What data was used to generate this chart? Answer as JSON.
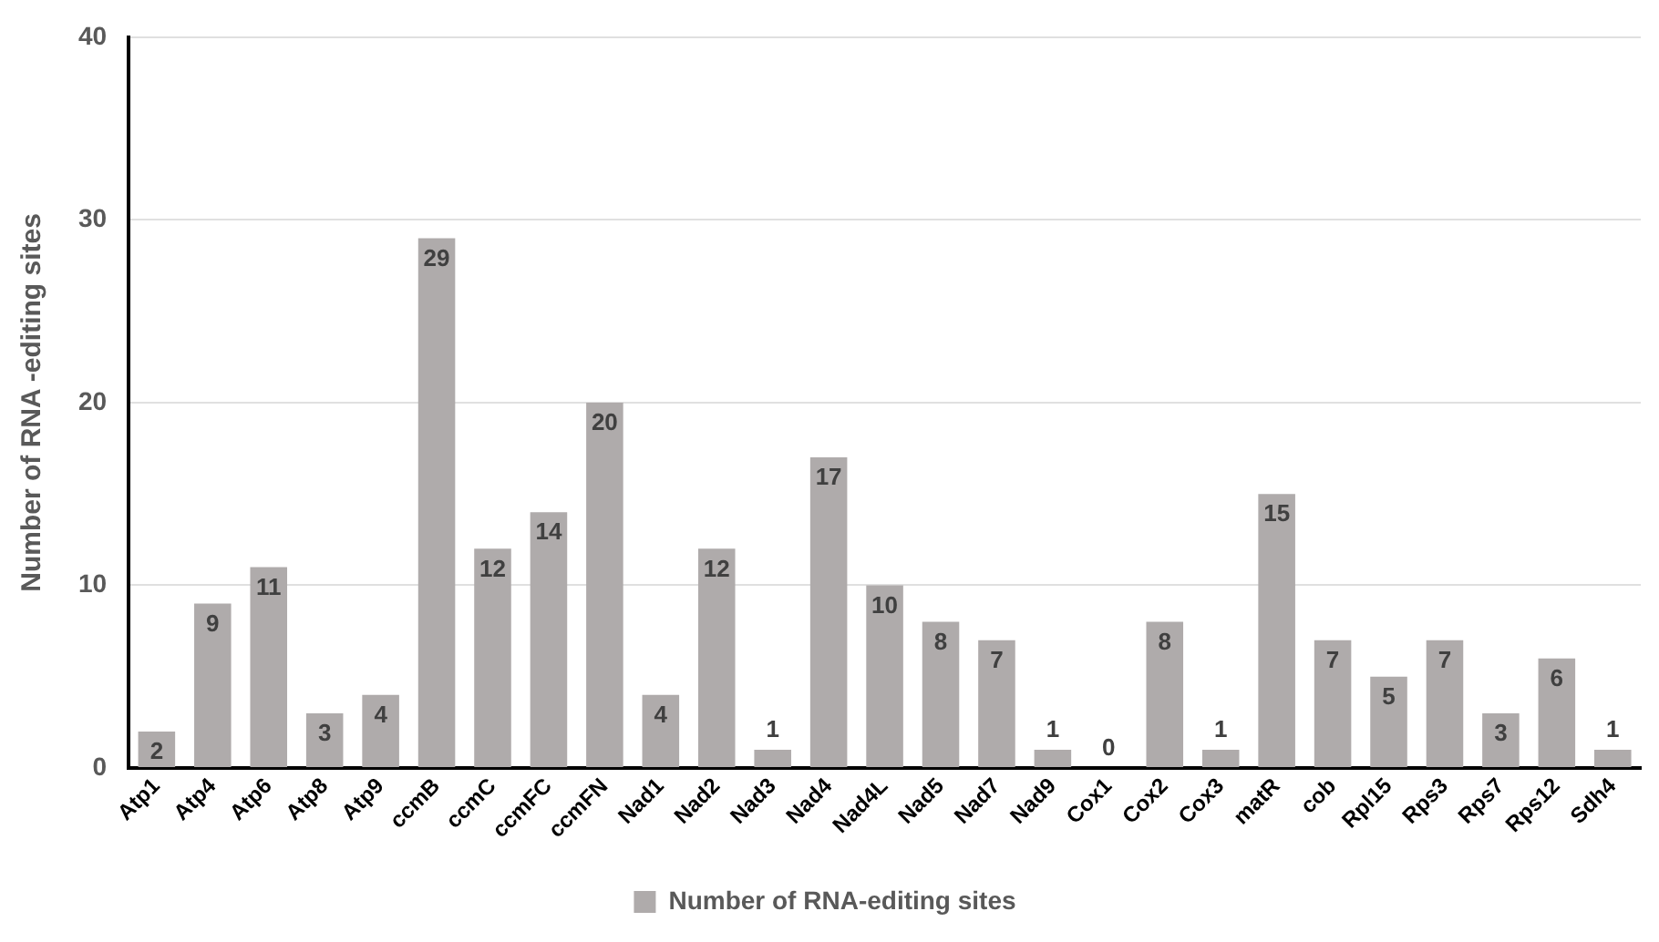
{
  "chart_data": {
    "type": "bar",
    "ylabel": "Number of RNA -editing sites",
    "categories": [
      "Atp1",
      "Atp4",
      "Atp6",
      "Atp8",
      "Atp9",
      "ccmB",
      "ccmC",
      "ccmFC",
      "ccmFN",
      "Nad1",
      "Nad2",
      "Nad3",
      "Nad4",
      "Nad4L",
      "Nad5",
      "Nad7",
      "Nad9",
      "Cox1",
      "Cox2",
      "Cox3",
      "matR",
      "cob",
      "Rpl15",
      "Rps3",
      "Rps7",
      "Rps12",
      "Sdh4"
    ],
    "series": [
      {
        "name": "Number of RNA-editing sites",
        "color": "#afabab",
        "values": [
          2,
          9,
          11,
          3,
          4,
          29,
          12,
          14,
          20,
          4,
          12,
          1,
          17,
          10,
          8,
          7,
          1,
          0,
          8,
          1,
          15,
          7,
          5,
          7,
          3,
          6,
          1
        ]
      }
    ],
    "ylim": [
      0,
      40
    ],
    "yticks": [
      0,
      10,
      20,
      30,
      40
    ],
    "grid": "y",
    "legend": "bottom",
    "data_labels": true
  }
}
